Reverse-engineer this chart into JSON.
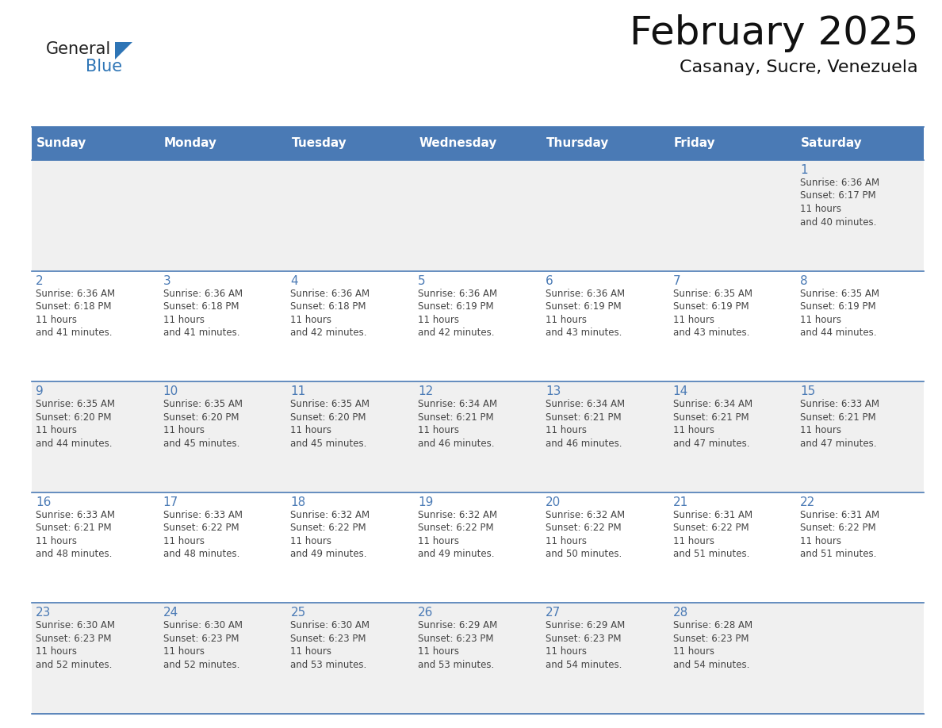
{
  "title": "February 2025",
  "subtitle": "Casanay, Sucre, Venezuela",
  "header_bg": "#4a7ab5",
  "header_text_color": "#ffffff",
  "day_names": [
    "Sunday",
    "Monday",
    "Tuesday",
    "Wednesday",
    "Thursday",
    "Friday",
    "Saturday"
  ],
  "row_bg_odd": "#f0f0f0",
  "row_bg_even": "#ffffff",
  "border_color": "#4a7ab5",
  "text_color": "#444444",
  "number_color": "#4a7ab5",
  "logo_general_color": "#222222",
  "logo_blue_color": "#2e75b6",
  "title_fontsize": 36,
  "subtitle_fontsize": 16,
  "header_fontsize": 11,
  "day_num_fontsize": 11,
  "info_fontsize": 8.5,
  "days": [
    {
      "day": 1,
      "col": 6,
      "row": 0,
      "sunrise": "6:36 AM",
      "sunset": "6:17 PM",
      "daylight": "11 hours and 40 minutes."
    },
    {
      "day": 2,
      "col": 0,
      "row": 1,
      "sunrise": "6:36 AM",
      "sunset": "6:18 PM",
      "daylight": "11 hours and 41 minutes."
    },
    {
      "day": 3,
      "col": 1,
      "row": 1,
      "sunrise": "6:36 AM",
      "sunset": "6:18 PM",
      "daylight": "11 hours and 41 minutes."
    },
    {
      "day": 4,
      "col": 2,
      "row": 1,
      "sunrise": "6:36 AM",
      "sunset": "6:18 PM",
      "daylight": "11 hours and 42 minutes."
    },
    {
      "day": 5,
      "col": 3,
      "row": 1,
      "sunrise": "6:36 AM",
      "sunset": "6:19 PM",
      "daylight": "11 hours and 42 minutes."
    },
    {
      "day": 6,
      "col": 4,
      "row": 1,
      "sunrise": "6:36 AM",
      "sunset": "6:19 PM",
      "daylight": "11 hours and 43 minutes."
    },
    {
      "day": 7,
      "col": 5,
      "row": 1,
      "sunrise": "6:35 AM",
      "sunset": "6:19 PM",
      "daylight": "11 hours and 43 minutes."
    },
    {
      "day": 8,
      "col": 6,
      "row": 1,
      "sunrise": "6:35 AM",
      "sunset": "6:19 PM",
      "daylight": "11 hours and 44 minutes."
    },
    {
      "day": 9,
      "col": 0,
      "row": 2,
      "sunrise": "6:35 AM",
      "sunset": "6:20 PM",
      "daylight": "11 hours and 44 minutes."
    },
    {
      "day": 10,
      "col": 1,
      "row": 2,
      "sunrise": "6:35 AM",
      "sunset": "6:20 PM",
      "daylight": "11 hours and 45 minutes."
    },
    {
      "day": 11,
      "col": 2,
      "row": 2,
      "sunrise": "6:35 AM",
      "sunset": "6:20 PM",
      "daylight": "11 hours and 45 minutes."
    },
    {
      "day": 12,
      "col": 3,
      "row": 2,
      "sunrise": "6:34 AM",
      "sunset": "6:21 PM",
      "daylight": "11 hours and 46 minutes."
    },
    {
      "day": 13,
      "col": 4,
      "row": 2,
      "sunrise": "6:34 AM",
      "sunset": "6:21 PM",
      "daylight": "11 hours and 46 minutes."
    },
    {
      "day": 14,
      "col": 5,
      "row": 2,
      "sunrise": "6:34 AM",
      "sunset": "6:21 PM",
      "daylight": "11 hours and 47 minutes."
    },
    {
      "day": 15,
      "col": 6,
      "row": 2,
      "sunrise": "6:33 AM",
      "sunset": "6:21 PM",
      "daylight": "11 hours and 47 minutes."
    },
    {
      "day": 16,
      "col": 0,
      "row": 3,
      "sunrise": "6:33 AM",
      "sunset": "6:21 PM",
      "daylight": "11 hours and 48 minutes."
    },
    {
      "day": 17,
      "col": 1,
      "row": 3,
      "sunrise": "6:33 AM",
      "sunset": "6:22 PM",
      "daylight": "11 hours and 48 minutes."
    },
    {
      "day": 18,
      "col": 2,
      "row": 3,
      "sunrise": "6:32 AM",
      "sunset": "6:22 PM",
      "daylight": "11 hours and 49 minutes."
    },
    {
      "day": 19,
      "col": 3,
      "row": 3,
      "sunrise": "6:32 AM",
      "sunset": "6:22 PM",
      "daylight": "11 hours and 49 minutes."
    },
    {
      "day": 20,
      "col": 4,
      "row": 3,
      "sunrise": "6:32 AM",
      "sunset": "6:22 PM",
      "daylight": "11 hours and 50 minutes."
    },
    {
      "day": 21,
      "col": 5,
      "row": 3,
      "sunrise": "6:31 AM",
      "sunset": "6:22 PM",
      "daylight": "11 hours and 51 minutes."
    },
    {
      "day": 22,
      "col": 6,
      "row": 3,
      "sunrise": "6:31 AM",
      "sunset": "6:22 PM",
      "daylight": "11 hours and 51 minutes."
    },
    {
      "day": 23,
      "col": 0,
      "row": 4,
      "sunrise": "6:30 AM",
      "sunset": "6:23 PM",
      "daylight": "11 hours and 52 minutes."
    },
    {
      "day": 24,
      "col": 1,
      "row": 4,
      "sunrise": "6:30 AM",
      "sunset": "6:23 PM",
      "daylight": "11 hours and 52 minutes."
    },
    {
      "day": 25,
      "col": 2,
      "row": 4,
      "sunrise": "6:30 AM",
      "sunset": "6:23 PM",
      "daylight": "11 hours and 53 minutes."
    },
    {
      "day": 26,
      "col": 3,
      "row": 4,
      "sunrise": "6:29 AM",
      "sunset": "6:23 PM",
      "daylight": "11 hours and 53 minutes."
    },
    {
      "day": 27,
      "col": 4,
      "row": 4,
      "sunrise": "6:29 AM",
      "sunset": "6:23 PM",
      "daylight": "11 hours and 54 minutes."
    },
    {
      "day": 28,
      "col": 5,
      "row": 4,
      "sunrise": "6:28 AM",
      "sunset": "6:23 PM",
      "daylight": "11 hours and 54 minutes."
    }
  ]
}
